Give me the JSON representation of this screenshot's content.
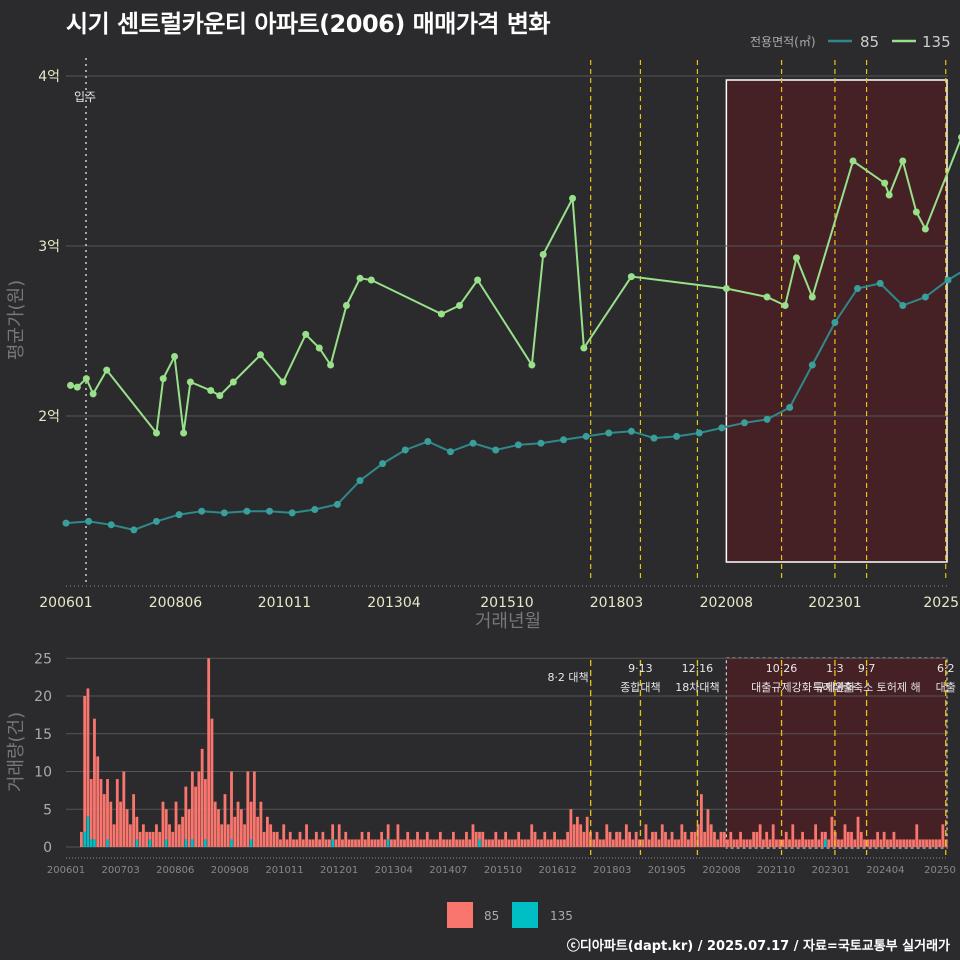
{
  "title": "시기 센트럴카운티 아파트(2006) 매매가격 변화",
  "caption": "ⓒ디아파트(dapt.kr) / 2025.07.17 / 자료=국토교통부 실거래가",
  "colors": {
    "s85_line": "#2e8a8a",
    "s85_point": "#3a9e9a",
    "s135": "#98e08a",
    "bar85": "#f8766d",
    "bar135": "#00bfc4",
    "vline": "#e6c21a",
    "highlight": "#4a2024",
    "grid": "#555555"
  },
  "chart_data": [
    {
      "type": "line",
      "title": "시기 센트럴카운티 아파트(2006) 매매가격 변화",
      "xlabel": "거래년월",
      "ylabel": "평균가(원)",
      "x_ticks": [
        "200601",
        "200806",
        "201011",
        "201304",
        "201510",
        "201803",
        "202008",
        "202301",
        "2025"
      ],
      "y_ticks": [
        "2억",
        "3억",
        "4억"
      ],
      "ylim": [
        1.05,
        4.05
      ],
      "legend_title": "전용면적(㎡)",
      "legend_position": "top-right",
      "annotations": [
        {
          "label": "입주",
          "x": 2006.0
        }
      ],
      "highlight_range": [
        2020.6,
        2025.5
      ],
      "series": [
        {
          "name": "135",
          "points": [
            [
              2006.1,
              2.18
            ],
            [
              2006.25,
              2.17
            ],
            [
              2006.45,
              2.22
            ],
            [
              2006.6,
              2.13
            ],
            [
              2006.9,
              2.27
            ],
            [
              2008.0,
              1.9
            ],
            [
              2008.15,
              2.22
            ],
            [
              2008.4,
              2.35
            ],
            [
              2008.6,
              1.9
            ],
            [
              2008.75,
              2.2
            ],
            [
              2009.2,
              2.15
            ],
            [
              2009.4,
              2.12
            ],
            [
              2009.7,
              2.2
            ],
            [
              2010.3,
              2.36
            ],
            [
              2010.8,
              2.2
            ],
            [
              2011.3,
              2.48
            ],
            [
              2011.6,
              2.4
            ],
            [
              2011.85,
              2.3
            ],
            [
              2012.2,
              2.65
            ],
            [
              2012.5,
              2.81
            ],
            [
              2012.75,
              2.8
            ],
            [
              2014.3,
              2.6
            ],
            [
              2014.7,
              2.65
            ],
            [
              2015.1,
              2.8
            ],
            [
              2016.3,
              2.3
            ],
            [
              2016.55,
              2.95
            ],
            [
              2017.2,
              3.28
            ],
            [
              2017.45,
              2.4
            ],
            [
              2018.5,
              2.82
            ],
            [
              2020.6,
              2.75
            ],
            [
              2021.5,
              2.7
            ],
            [
              2021.9,
              2.65
            ],
            [
              2022.15,
              2.93
            ],
            [
              2022.5,
              2.7
            ],
            [
              2023.4,
              3.5
            ],
            [
              2024.1,
              3.37
            ],
            [
              2024.2,
              3.3
            ],
            [
              2024.5,
              3.5
            ],
            [
              2024.8,
              3.2
            ],
            [
              2025.0,
              3.1
            ],
            [
              2025.8,
              3.64
            ],
            [
              2026.1,
              3.9
            ]
          ]
        },
        {
          "name": "85",
          "points": [
            [
              2006.0,
              1.37
            ],
            [
              2006.5,
              1.38
            ],
            [
              2007.0,
              1.36
            ],
            [
              2007.5,
              1.33
            ],
            [
              2008.0,
              1.38
            ],
            [
              2008.5,
              1.42
            ],
            [
              2009.0,
              1.44
            ],
            [
              2009.5,
              1.43
            ],
            [
              2010.0,
              1.44
            ],
            [
              2010.5,
              1.44
            ],
            [
              2011.0,
              1.43
            ],
            [
              2011.5,
              1.45
            ],
            [
              2012.0,
              1.48
            ],
            [
              2012.5,
              1.62
            ],
            [
              2013.0,
              1.72
            ],
            [
              2013.5,
              1.8
            ],
            [
              2014.0,
              1.85
            ],
            [
              2014.5,
              1.79
            ],
            [
              2015.0,
              1.84
            ],
            [
              2015.5,
              1.8
            ],
            [
              2016.0,
              1.83
            ],
            [
              2016.5,
              1.84
            ],
            [
              2017.0,
              1.86
            ],
            [
              2017.5,
              1.88
            ],
            [
              2018.0,
              1.9
            ],
            [
              2018.5,
              1.91
            ],
            [
              2019.0,
              1.87
            ],
            [
              2019.5,
              1.88
            ],
            [
              2020.0,
              1.9
            ],
            [
              2020.5,
              1.93
            ],
            [
              2021.0,
              1.96
            ],
            [
              2021.5,
              1.98
            ],
            [
              2022.0,
              2.05
            ],
            [
              2022.5,
              2.3
            ],
            [
              2023.0,
              2.55
            ],
            [
              2023.5,
              2.75
            ],
            [
              2024.0,
              2.78
            ],
            [
              2024.5,
              2.65
            ],
            [
              2025.0,
              2.7
            ],
            [
              2025.5,
              2.8
            ],
            [
              2026.0,
              2.88
            ]
          ]
        }
      ]
    },
    {
      "type": "bar",
      "xlabel": "",
      "ylabel": "거래량(건)",
      "x_ticks": [
        "200601",
        "200703",
        "200806",
        "200908",
        "201011",
        "201201",
        "201304",
        "201407",
        "201510",
        "201612",
        "201803",
        "201905",
        "202008",
        "202110",
        "202301",
        "202404",
        "20250"
      ],
      "y_ticks": [
        "0",
        "5",
        "10",
        "15",
        "20",
        "25"
      ],
      "ylim": [
        0,
        25
      ],
      "legend": [
        "85",
        "135"
      ],
      "legend_position": "bottom",
      "highlight_range": [
        2020.6,
        2025.5
      ],
      "monthly_85": [
        2,
        18,
        17,
        8,
        16,
        12,
        9,
        7,
        8,
        6,
        3,
        9,
        6,
        10,
        5,
        3,
        7,
        3,
        2,
        3,
        2,
        1,
        2,
        3,
        2,
        6,
        4,
        3,
        2,
        6,
        3,
        4,
        7,
        5,
        9,
        8,
        10,
        13,
        8,
        25,
        17,
        6,
        5,
        3,
        7,
        3,
        9,
        4,
        6,
        5,
        3,
        10,
        5,
        10,
        4,
        6,
        2,
        4,
        3,
        2,
        2,
        1,
        3,
        1,
        2,
        1,
        1,
        2,
        1,
        3,
        1,
        1,
        2,
        1,
        2,
        1,
        1,
        2,
        1,
        3,
        1,
        2,
        1,
        1,
        1,
        1,
        2,
        1,
        2,
        1,
        1,
        1,
        2,
        1,
        2,
        1,
        1,
        3,
        1,
        1,
        2,
        1,
        1,
        2,
        1,
        1,
        2,
        1,
        1,
        1,
        2,
        1,
        1,
        1,
        2,
        1,
        1,
        1,
        2,
        1,
        3,
        2,
        1,
        2,
        1,
        1,
        1,
        2,
        1,
        1,
        2,
        1,
        1,
        1,
        2,
        1,
        1,
        1,
        3,
        2,
        1,
        1,
        2,
        1,
        1,
        2,
        1,
        1,
        1,
        2,
        5,
        3,
        4,
        3,
        2,
        4,
        2,
        1,
        2,
        1,
        1,
        3,
        2,
        1,
        2,
        2,
        1,
        3,
        2,
        1,
        2,
        1,
        1,
        3,
        1,
        2,
        2,
        1,
        3,
        2,
        1,
        2,
        1,
        1,
        3,
        2,
        1,
        2,
        2,
        3,
        7,
        2,
        5,
        3,
        2,
        1,
        2,
        2,
        1,
        2,
        1,
        1,
        2,
        1,
        1,
        1,
        2,
        2,
        3,
        1,
        2,
        1,
        3,
        1,
        1,
        1,
        2,
        1,
        3,
        1,
        1,
        2,
        1,
        1,
        1,
        3,
        1,
        2,
        1,
        1,
        4,
        2,
        1,
        1,
        3,
        2,
        2,
        1,
        4,
        2,
        1,
        1,
        1,
        1,
        2,
        1,
        2,
        1,
        1,
        2,
        1,
        1,
        1,
        1,
        1,
        1,
        3,
        1,
        1,
        1,
        1,
        1,
        1,
        1,
        3,
        1
      ],
      "monthly_135": [
        0,
        2,
        4,
        1,
        1,
        0,
        0,
        0,
        1,
        0,
        0,
        0,
        0,
        0,
        0,
        0,
        0,
        1,
        0,
        0,
        0,
        1,
        0,
        0,
        0,
        0,
        1,
        0,
        0,
        0,
        0,
        0,
        1,
        0,
        1,
        0,
        0,
        0,
        1,
        0,
        0,
        0,
        0,
        0,
        0,
        0,
        1,
        0,
        0,
        0,
        0,
        0,
        1,
        0,
        0,
        0,
        0,
        0,
        0,
        0,
        0,
        0,
        0,
        0,
        0,
        0,
        0,
        0,
        0,
        0,
        0,
        0,
        0,
        0,
        0,
        0,
        0,
        1,
        0,
        0,
        0,
        0,
        0,
        0,
        0,
        0,
        0,
        0,
        0,
        0,
        0,
        0,
        0,
        0,
        1,
        0,
        0,
        0,
        0,
        0,
        0,
        0,
        0,
        0,
        0,
        0,
        0,
        0,
        0,
        0,
        0,
        0,
        0,
        0,
        0,
        0,
        0,
        0,
        0,
        0,
        0,
        0,
        1,
        0,
        0,
        0,
        0,
        0,
        0,
        0,
        0,
        0,
        0,
        0,
        0,
        0,
        0,
        0,
        0,
        0,
        0,
        0,
        0,
        0,
        0,
        0,
        0,
        0,
        0,
        0,
        0,
        0,
        0,
        0,
        0,
        0,
        0,
        0,
        0,
        0,
        0,
        0,
        0,
        0,
        0,
        0,
        0,
        0,
        0,
        0,
        0,
        0,
        0,
        0,
        0,
        0,
        0,
        0,
        0,
        0,
        0,
        0,
        0,
        0,
        0,
        0,
        0,
        0,
        0,
        0,
        0,
        0,
        0,
        0,
        0,
        0,
        0,
        0,
        0,
        0,
        0,
        0,
        0,
        0,
        0,
        0,
        0,
        0,
        0,
        0,
        0,
        0,
        0,
        0,
        0,
        0,
        0,
        0,
        0,
        0,
        0,
        0,
        0,
        0,
        0,
        0,
        0,
        0,
        1,
        0,
        0,
        0,
        0,
        0,
        0,
        0,
        0,
        0,
        0,
        0,
        0,
        0,
        0,
        0,
        0,
        0,
        0,
        0,
        0,
        0,
        0,
        0,
        0,
        0,
        0,
        0,
        0
      ],
      "policies": [
        {
          "line1": "8·2 대책",
          "line2": "",
          "x": 2017.6
        },
        {
          "line1": "9·13",
          "line2": "종합대책",
          "x": 2018.7
        },
        {
          "line1": "12·16",
          "line2": "18차대책",
          "x": 2019.96
        },
        {
          "line1": "10·26",
          "line2": "대출규제강화",
          "x": 2021.82
        },
        {
          "line1": "1·3",
          "line2": "규제완화",
          "x": 2023.0
        },
        {
          "line1": "9·7",
          "line2": "특례대출축소 토허제 해",
          "x": 2023.7
        },
        {
          "line1": "6·2",
          "line2": "대출",
          "x": 2025.45
        }
      ]
    }
  ]
}
